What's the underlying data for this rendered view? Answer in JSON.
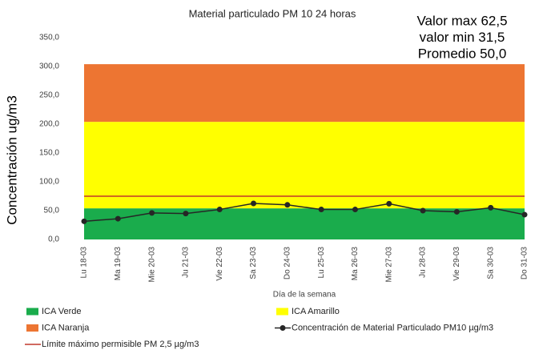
{
  "chart_data": {
    "type": "line",
    "title": "Material particulado PM 10 24 horas",
    "annotations": [
      "Valor max 62,5",
      "valor min 31,5",
      "Promedio 50,0"
    ],
    "y_label": "Concentración ug/m3",
    "x_label": "Día de la semana",
    "categories": [
      "Lu 18-03",
      "Ma 19-03",
      "Mie 20-03",
      "Ju 21-03",
      "Vie 22-03",
      "Sa 23-03",
      "Do 24-03",
      "Lu 25-03",
      "Ma 26-03",
      "Mie 27-03",
      "Ju 28-03",
      "Vie 29-03",
      "Sa 30-03",
      "Do 31-03"
    ],
    "series": [
      {
        "name": "ICA Verde",
        "type": "area",
        "color": "#1aac4c",
        "values": [
          54,
          54,
          54,
          54,
          54,
          54,
          54,
          54,
          54,
          54,
          54,
          54,
          54,
          54
        ]
      },
      {
        "name": "ICA Amarillo",
        "type": "area",
        "color": "#ffff00",
        "values": [
          150,
          150,
          150,
          150,
          150,
          150,
          150,
          150,
          150,
          150,
          150,
          150,
          150,
          150
        ]
      },
      {
        "name": "ICA Naranja",
        "type": "area",
        "color": "#ed7532",
        "values": [
          100,
          100,
          100,
          100,
          100,
          100,
          100,
          100,
          100,
          100,
          100,
          100,
          100,
          100
        ]
      },
      {
        "name": "Concentración de Material Particulado PM10 µg/m3",
        "type": "line",
        "marker": true,
        "color": "#262626",
        "values": [
          31.5,
          36,
          46,
          45,
          52,
          62.5,
          60,
          52,
          52,
          62,
          50,
          48,
          55,
          43
        ]
      },
      {
        "name": "Límite máximo permisible PM 2,5 µg/m3",
        "type": "line",
        "marker": false,
        "color": "#c0392b",
        "values": [
          75,
          75,
          75,
          75,
          75,
          75,
          75,
          75,
          75,
          75,
          75,
          75,
          75,
          75
        ]
      }
    ],
    "ylim": [
      0,
      350
    ],
    "yticks": [
      {
        "value": 0,
        "label": "0,0"
      },
      {
        "value": 50,
        "label": "50,0"
      },
      {
        "value": 100,
        "label": "100,0"
      },
      {
        "value": 150,
        "label": "150,0"
      },
      {
        "value": 200,
        "label": "200,0"
      },
      {
        "value": 250,
        "label": "250,0"
      },
      {
        "value": 300,
        "label": "300,0"
      },
      {
        "value": 350,
        "label": "350,0"
      }
    ],
    "grid": false
  }
}
